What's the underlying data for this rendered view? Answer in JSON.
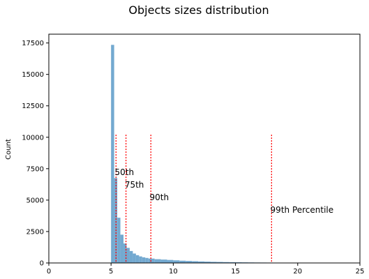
{
  "chart_data": {
    "type": "bar",
    "title": "Objects sizes distribution",
    "xlabel": "",
    "ylabel": "Count",
    "xlim": [
      0,
      25
    ],
    "ylim": [
      0,
      18200
    ],
    "xticks": [
      0,
      5,
      10,
      15,
      20,
      25
    ],
    "yticks": [
      0,
      2500,
      5000,
      7500,
      10000,
      12500,
      15000,
      17500
    ],
    "bar_color": "#73a9d0",
    "bins": [
      {
        "x0": 5.0,
        "x1": 5.25,
        "count": 17350
      },
      {
        "x0": 5.25,
        "x1": 5.5,
        "count": 6750
      },
      {
        "x0": 5.5,
        "x1": 5.75,
        "count": 3600
      },
      {
        "x0": 5.75,
        "x1": 6.0,
        "count": 2250
      },
      {
        "x0": 6.0,
        "x1": 6.25,
        "count": 1550
      },
      {
        "x0": 6.25,
        "x1": 6.5,
        "count": 1200
      },
      {
        "x0": 6.5,
        "x1": 6.75,
        "count": 950
      },
      {
        "x0": 6.75,
        "x1": 7.0,
        "count": 750
      },
      {
        "x0": 7.0,
        "x1": 7.25,
        "count": 620
      },
      {
        "x0": 7.25,
        "x1": 7.5,
        "count": 520
      },
      {
        "x0": 7.5,
        "x1": 7.75,
        "count": 450
      },
      {
        "x0": 7.75,
        "x1": 8.0,
        "count": 400
      },
      {
        "x0": 8.0,
        "x1": 8.5,
        "count": 350
      },
      {
        "x0": 8.5,
        "x1": 9.0,
        "count": 300
      },
      {
        "x0": 9.0,
        "x1": 9.5,
        "count": 270
      },
      {
        "x0": 9.5,
        "x1": 10.0,
        "count": 240
      },
      {
        "x0": 10.0,
        "x1": 10.5,
        "count": 210
      },
      {
        "x0": 10.5,
        "x1": 11.0,
        "count": 180
      },
      {
        "x0": 11.0,
        "x1": 11.5,
        "count": 160
      },
      {
        "x0": 11.5,
        "x1": 12.0,
        "count": 140
      },
      {
        "x0": 12.0,
        "x1": 12.5,
        "count": 120
      },
      {
        "x0": 12.5,
        "x1": 13.0,
        "count": 105
      },
      {
        "x0": 13.0,
        "x1": 13.5,
        "count": 90
      },
      {
        "x0": 13.5,
        "x1": 14.0,
        "count": 80
      },
      {
        "x0": 14.0,
        "x1": 14.5,
        "count": 70
      },
      {
        "x0": 14.5,
        "x1": 15.0,
        "count": 62
      },
      {
        "x0": 15.0,
        "x1": 15.5,
        "count": 55
      },
      {
        "x0": 15.5,
        "x1": 16.0,
        "count": 48
      },
      {
        "x0": 16.0,
        "x1": 16.5,
        "count": 42
      },
      {
        "x0": 16.5,
        "x1": 17.0,
        "count": 37
      },
      {
        "x0": 17.0,
        "x1": 17.5,
        "count": 33
      },
      {
        "x0": 17.5,
        "x1": 18.0,
        "count": 30
      },
      {
        "x0": 18.0,
        "x1": 18.5,
        "count": 27
      },
      {
        "x0": 18.5,
        "x1": 19.0,
        "count": 24
      },
      {
        "x0": 19.0,
        "x1": 19.5,
        "count": 22
      },
      {
        "x0": 19.5,
        "x1": 20.0,
        "count": 20
      },
      {
        "x0": 20.0,
        "x1": 20.5,
        "count": 18
      }
    ],
    "percentiles": [
      {
        "label": "50th",
        "x": 5.4,
        "line_top": 10200,
        "text_y": 7000,
        "text_x": 5.3
      },
      {
        "label": "75th",
        "x": 6.2,
        "line_top": 10200,
        "text_y": 6000,
        "text_x": 6.1
      },
      {
        "label": "90th",
        "x": 8.2,
        "line_top": 10200,
        "text_y": 5000,
        "text_x": 8.1
      },
      {
        "label": "99th Percentile",
        "x": 17.9,
        "line_top": 10200,
        "text_y": 4000,
        "text_x": 17.8
      }
    ],
    "percentile_line_color": "#ff0000"
  }
}
